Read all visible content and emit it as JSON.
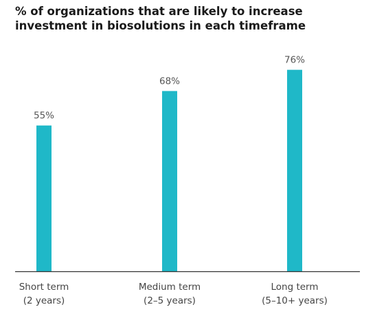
{
  "chart_data": {
    "type": "bar",
    "title_lines": [
      "% of organizations that are likely to increase",
      "investment in biosolutions in each timeframe"
    ],
    "categories": [
      [
        "Short term",
        "(2 years)"
      ],
      [
        "Medium term",
        "(2–5 years)"
      ],
      [
        "Long term",
        "(5–10+ years)"
      ]
    ],
    "values": [
      55,
      68,
      76
    ],
    "value_labels": [
      "55%",
      "68%",
      "76%"
    ],
    "ylim": [
      0,
      100
    ],
    "grid": false,
    "legend": "none",
    "colors": {
      "bar": "#1fb8c8",
      "baseline": "#333333",
      "title": "#1a1a1a"
    }
  }
}
